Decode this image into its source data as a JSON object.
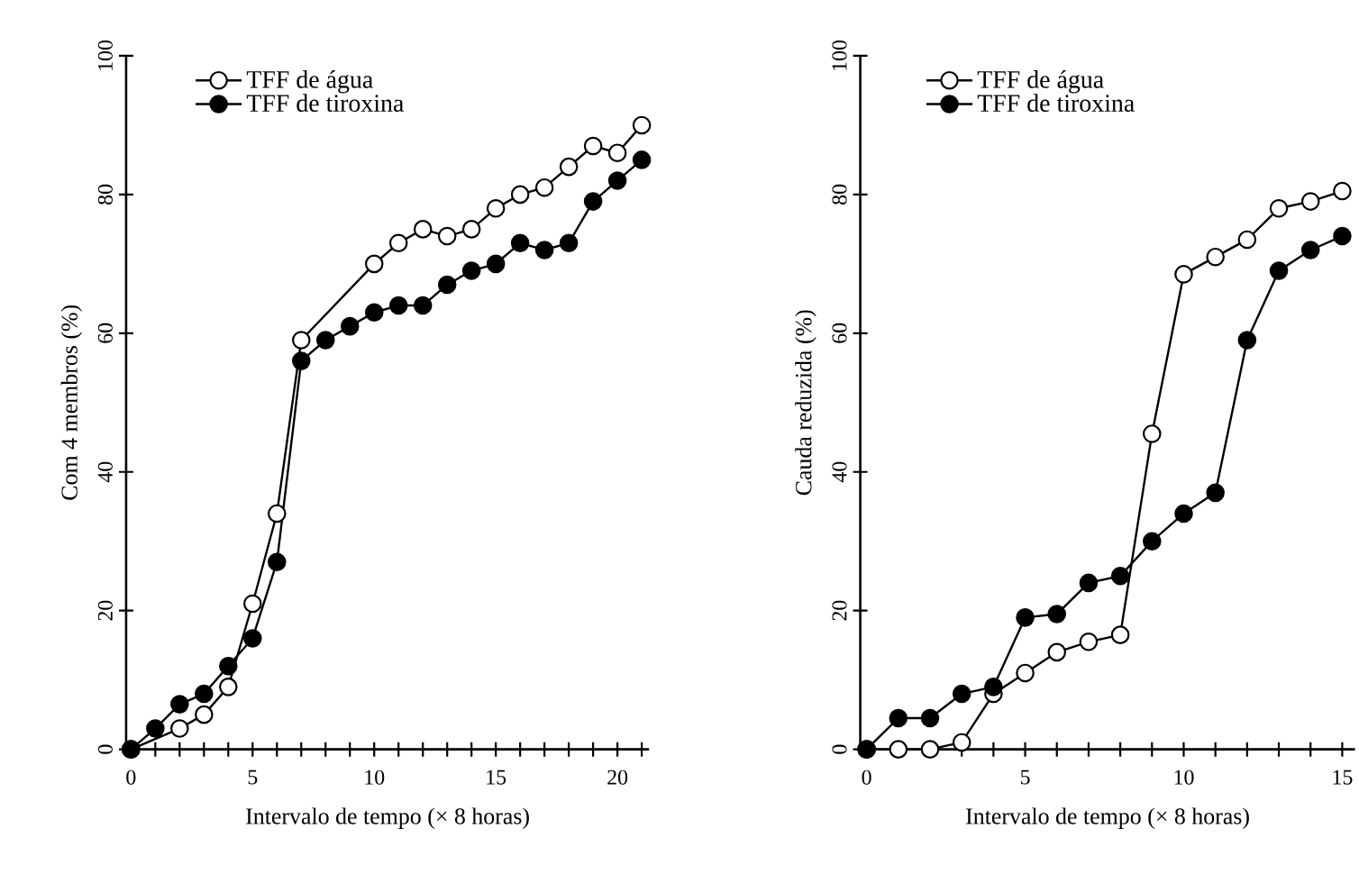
{
  "chart_data": [
    {
      "type": "line",
      "xlabel": "Intervalo de tempo (× 8 horas)",
      "ylabel": "Com 4 membros (%)",
      "x": [
        0,
        1,
        2,
        3,
        4,
        5,
        6,
        7,
        8,
        9,
        10,
        11,
        12,
        13,
        14,
        15,
        16,
        17,
        18,
        19,
        20,
        21
      ],
      "series": [
        {
          "name": "TFF de água",
          "color": "#ffffff",
          "values": [
            0,
            null,
            3,
            5,
            9,
            21,
            34,
            59,
            null,
            null,
            70,
            73,
            75,
            74,
            75,
            78,
            80,
            81,
            84,
            87,
            86,
            90
          ]
        },
        {
          "name": "TFF de tiroxina",
          "color": "#000000",
          "values": [
            0,
            3,
            6.5,
            8,
            12,
            16,
            27,
            56,
            59,
            61,
            63,
            64,
            64,
            67,
            69,
            70,
            73,
            72,
            73,
            79,
            82,
            85
          ]
        }
      ],
      "xlim": [
        -0.2,
        21.3
      ],
      "ylim": [
        0,
        100
      ],
      "xticks": [
        0,
        {
          "value": 1,
          "label": null
        },
        {
          "value": 2,
          "label": null
        },
        {
          "value": 3,
          "label": null
        },
        {
          "value": 4,
          "label": null
        },
        5,
        {
          "value": 6,
          "label": null
        },
        {
          "value": 7,
          "label": null
        },
        {
          "value": 8,
          "label": null
        },
        {
          "value": 9,
          "label": null
        },
        10,
        {
          "value": 11,
          "label": null
        },
        {
          "value": 12,
          "label": null
        },
        {
          "value": 13,
          "label": null
        },
        {
          "value": 14,
          "label": null
        },
        15,
        {
          "value": 16,
          "label": null
        },
        {
          "value": 17,
          "label": null
        },
        {
          "value": 18,
          "label": null
        },
        {
          "value": 19,
          "label": null
        },
        20,
        {
          "value": 21,
          "label": null
        }
      ],
      "yticks": [
        0,
        20,
        40,
        60,
        80,
        100
      ],
      "grid": false,
      "legend": "top left",
      "marker": "circle",
      "line_style": "solid"
    },
    {
      "type": "line",
      "xlabel": "Intervalo de tempo (× 8 horas)",
      "ylabel": "Cauda reduzida (%)",
      "x": [
        0,
        1,
        2,
        3,
        4,
        5,
        6,
        7,
        8,
        9,
        10,
        11,
        12,
        13,
        14,
        15
      ],
      "series": [
        {
          "name": "TFF de água",
          "color": "#ffffff",
          "values": [
            0,
            0,
            0,
            1,
            8,
            11,
            14,
            15.5,
            16.5,
            45.5,
            68.5,
            71,
            73.5,
            78,
            79,
            80.5
          ]
        },
        {
          "name": "TFF de tiroxina",
          "color": "#000000",
          "values": [
            0,
            4.5,
            4.5,
            8,
            9,
            19,
            19.5,
            24,
            25,
            30,
            34,
            37,
            59,
            69,
            72,
            74
          ]
        }
      ],
      "xlim": [
        -0.2,
        15.4
      ],
      "ylim": [
        0,
        100
      ],
      "xticks": [
        0,
        {
          "value": 1,
          "label": null
        },
        {
          "value": 2,
          "label": null
        },
        {
          "value": 3,
          "label": null
        },
        {
          "value": 4,
          "label": null
        },
        5,
        {
          "value": 6,
          "label": null
        },
        {
          "value": 7,
          "label": null
        },
        {
          "value": 8,
          "label": null
        },
        {
          "value": 9,
          "label": null
        },
        10,
        {
          "value": 11,
          "label": null
        },
        {
          "value": 12,
          "label": null
        },
        {
          "value": 13,
          "label": null
        },
        {
          "value": 14,
          "label": null
        },
        15
      ],
      "yticks": [
        0,
        20,
        40,
        60,
        80,
        100
      ],
      "grid": false,
      "legend": "top left",
      "marker": "circle",
      "line_style": "solid"
    }
  ]
}
